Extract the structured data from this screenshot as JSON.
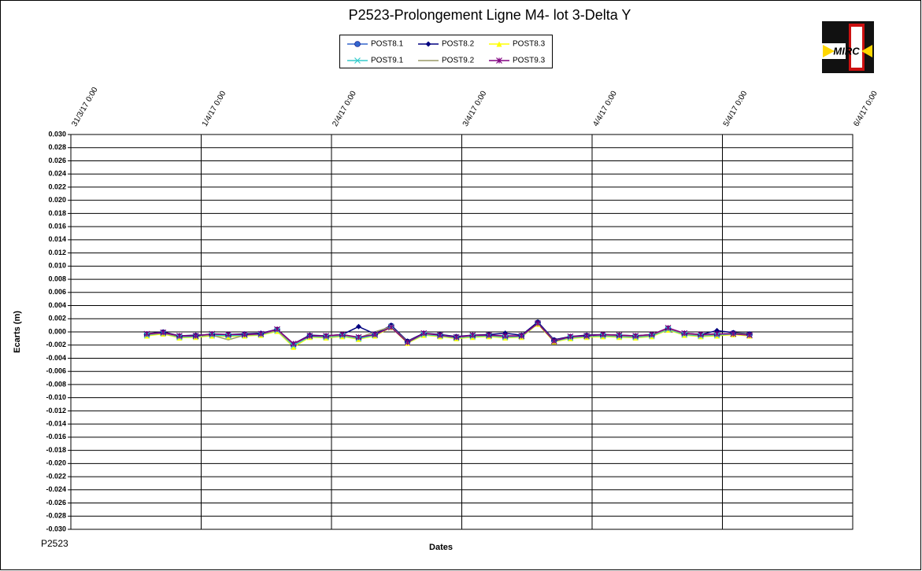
{
  "chart_data": {
    "type": "line",
    "title": "P2523-Prolongement  Ligne M4- lot 3-Delta Y",
    "x_label": "Dates",
    "y_label": "Ecarts (m)",
    "footer": "P2523",
    "logo_text": "MIRC",
    "grid": true,
    "xlim": [
      "31/3/17 0:00",
      "6/4/17 0:00"
    ],
    "xticks": [
      "31/3/17 0:00",
      "1/4/17 0:00",
      "2/4/17 0:00",
      "3/4/17 0:00",
      "4/4/17 0:00",
      "5/4/17 0:00",
      "6/4/17 0:00"
    ],
    "ylim": [
      -0.03,
      0.03
    ],
    "yticks": [
      {
        "value": 0.03,
        "label": "0.030"
      },
      0.028,
      0.026,
      0.024,
      0.022,
      {
        "value": 0.02,
        "label": "0.020"
      },
      0.018,
      0.016,
      0.014,
      0.012,
      {
        "value": 0.01,
        "label": "0.010"
      },
      0.008,
      0.006,
      0.004,
      0.002,
      {
        "value": 0,
        "label": "0.000"
      },
      -0.002,
      -0.004,
      -0.006,
      -0.008,
      {
        "value": -0.01,
        "label": "-0.010"
      },
      -0.012,
      -0.014,
      -0.016,
      -0.018,
      {
        "value": -0.02,
        "label": "-0.020"
      },
      -0.022,
      -0.024,
      -0.026,
      -0.028,
      {
        "value": -0.03,
        "label": "-0.030"
      }
    ],
    "x": [
      "31/3/17 14:00",
      "31/3/17 17:00",
      "31/3/17 20:00",
      "31/3/17 23:00",
      "1/4/17 2:00",
      "1/4/17 5:00",
      "1/4/17 8:00",
      "1/4/17 11:00",
      "1/4/17 14:00",
      "1/4/17 17:00",
      "1/4/17 20:00",
      "1/4/17 23:00",
      "2/4/17 2:00",
      "2/4/17 5:00",
      "2/4/17 8:00",
      "2/4/17 11:00",
      "2/4/17 14:00",
      "2/4/17 17:00",
      "2/4/17 20:00",
      "2/4/17 23:00",
      "3/4/17 2:00",
      "3/4/17 5:00",
      "3/4/17 8:00",
      "3/4/17 11:00",
      "3/4/17 14:00",
      "3/4/17 17:00",
      "3/4/17 20:00",
      "3/4/17 23:00",
      "4/4/17 2:00",
      "4/4/17 5:00",
      "4/4/17 8:00",
      "4/4/17 11:00",
      "4/4/17 14:00",
      "4/4/17 17:00",
      "4/4/17 20:00",
      "4/4/17 23:00",
      "5/4/17 2:00",
      "5/4/17 5:00"
    ],
    "series": [
      {
        "name": "POST8.1",
        "color": "#3366cc",
        "marker": "circle",
        "values": [
          -0.0004,
          -0.0001,
          -0.0007,
          -0.0006,
          -0.0004,
          -0.0005,
          -0.0004,
          -0.0003,
          0.0003,
          -0.002,
          -0.0006,
          -0.0007,
          -0.0005,
          -0.0009,
          -0.0004,
          0.0009,
          -0.0015,
          -0.0003,
          -0.0005,
          -0.0008,
          -0.0006,
          -0.0005,
          -0.0007,
          -0.0006,
          0.0014,
          -0.0013,
          -0.0008,
          -0.0006,
          -0.0005,
          -0.0006,
          -0.0007,
          -0.0005,
          0.0005,
          -0.0003,
          -0.0005,
          -0.0004,
          -0.0002,
          -0.0004
        ]
      },
      {
        "name": "POST8.2",
        "color": "#000080",
        "marker": "diamond",
        "values": [
          -0.0003,
          0.0,
          -0.0006,
          -0.0005,
          -0.0004,
          -0.0004,
          -0.0003,
          -0.0002,
          0.0004,
          -0.0018,
          -0.0005,
          -0.0006,
          -0.0004,
          0.0008,
          -0.0003,
          0.001,
          -0.0014,
          -0.0002,
          -0.0004,
          -0.0007,
          -0.0005,
          -0.0004,
          -0.0002,
          -0.0005,
          0.0015,
          -0.0012,
          -0.0007,
          -0.0005,
          -0.0004,
          -0.0005,
          -0.0006,
          -0.0004,
          0.0004,
          -0.0002,
          -0.0004,
          0.0002,
          -0.0001,
          -0.0003
        ]
      },
      {
        "name": "POST8.3",
        "color": "#ffff00",
        "marker": "triangle",
        "values": [
          -0.0006,
          -0.0003,
          -0.0009,
          -0.0008,
          -0.0006,
          -0.0007,
          -0.0006,
          -0.0005,
          0.0001,
          -0.0023,
          -0.0008,
          -0.0009,
          -0.0007,
          -0.0011,
          -0.0006,
          0.0007,
          -0.0017,
          -0.0005,
          -0.0007,
          -0.001,
          -0.0008,
          -0.0007,
          -0.0009,
          -0.0008,
          0.0012,
          -0.0015,
          -0.001,
          -0.0008,
          -0.0007,
          -0.0008,
          -0.0009,
          -0.0007,
          0.0003,
          -0.0005,
          -0.0007,
          -0.0006,
          -0.0004,
          -0.0006
        ]
      },
      {
        "name": "POST9.1",
        "color": "#33cccc",
        "marker": "x",
        "values": [
          -0.0005,
          -0.0002,
          -0.0008,
          -0.0007,
          -0.0005,
          -0.0006,
          -0.0005,
          -0.0004,
          0.0002,
          -0.0021,
          -0.0007,
          -0.0008,
          -0.0006,
          -0.001,
          -0.0005,
          0.0008,
          -0.0016,
          -0.0004,
          -0.0006,
          -0.0009,
          -0.0007,
          -0.0006,
          -0.0008,
          -0.0007,
          0.0013,
          -0.0014,
          -0.0009,
          -0.0007,
          -0.0006,
          -0.0007,
          -0.0008,
          -0.0006,
          0.0004,
          -0.0004,
          -0.0006,
          -0.0005,
          -0.0003,
          -0.0005
        ]
      },
      {
        "name": "POST9.2",
        "color": "#999966",
        "marker": "none",
        "values": [
          -0.0004,
          -0.0002,
          -0.0007,
          -0.0006,
          -0.0005,
          -0.0012,
          -0.0005,
          -0.0003,
          0.0002,
          -0.0019,
          -0.0006,
          -0.0007,
          -0.0005,
          -0.0009,
          0.0,
          0.0008,
          -0.0015,
          -0.0003,
          -0.0005,
          -0.0008,
          -0.0006,
          -0.0005,
          -0.0007,
          -0.0006,
          0.0013,
          -0.0013,
          -0.0008,
          -0.0006,
          -0.0005,
          -0.0006,
          -0.0007,
          -0.0005,
          0.0005,
          -0.0003,
          -0.0005,
          -0.0004,
          -0.0002,
          -0.0004
        ]
      },
      {
        "name": "POST9.3",
        "color": "#800080",
        "marker": "star",
        "values": [
          -0.0003,
          -0.0001,
          -0.0006,
          -0.0006,
          -0.0003,
          -0.0004,
          -0.0004,
          -0.0003,
          0.0004,
          -0.0018,
          -0.0006,
          -0.0006,
          -0.0004,
          -0.0008,
          -0.0004,
          0.0007,
          -0.0016,
          -0.0002,
          -0.0005,
          -0.0008,
          -0.0005,
          -0.0005,
          -0.0006,
          -0.0006,
          0.0013,
          -0.0014,
          -0.0007,
          -0.0006,
          -0.0004,
          -0.0005,
          -0.0006,
          -0.0004,
          0.0006,
          -0.0002,
          -0.0004,
          -0.0003,
          -0.0003,
          -0.0005
        ]
      }
    ]
  }
}
